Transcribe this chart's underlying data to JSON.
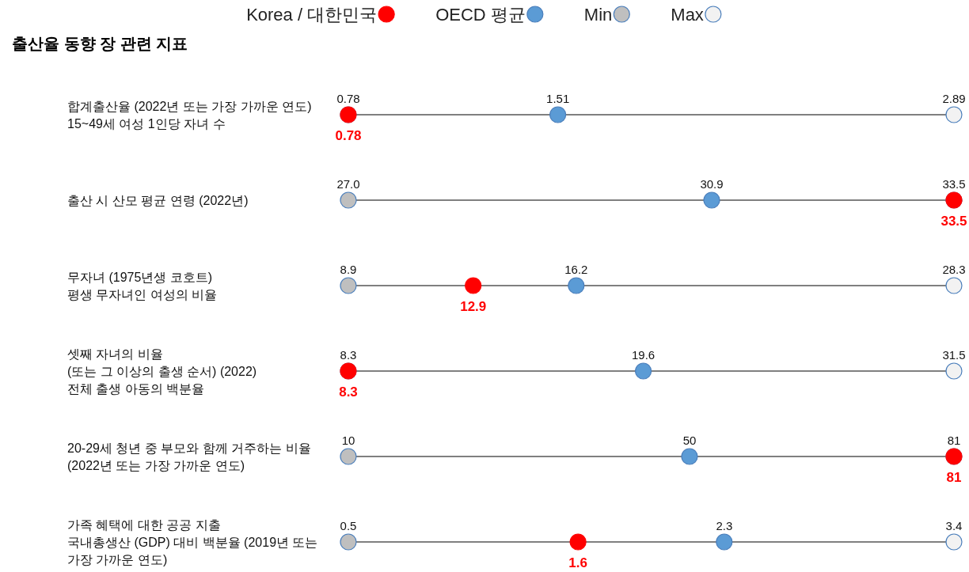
{
  "chart_data": {
    "type": "other",
    "title": "출산율 동향 장 관련 지표",
    "categories": [
      "합계출산율 (2022년 또는 가장 가까운 연도)\n15~49세 여성 1인당 자녀 수",
      "출산 시 산모 평균 연령 (2022년)",
      "무자녀 (1975년생 코호트)\n평생 무자녀인 여성의 비율",
      "셋째 자녀의 비율\n(또는 그 이상의 출생 순서) (2022)\n전체 출생 아동의 백분율",
      "20-29세 청년 중 부모와 함께 거주하는 비율\n(2022년 또는 가장 가까운 연도)",
      "가족 혜택에 대한 공공 지출\n국내총생산 (GDP) 대비 백분율 (2019년 또는\n가장 가까운 연도)"
    ],
    "series": [
      {
        "name": "Korea / 대한민국",
        "color": "#ff0000",
        "values": [
          0.78,
          33.5,
          12.9,
          8.3,
          81,
          1.6
        ],
        "value_labels": [
          "0.78",
          "33.5",
          "12.9",
          "8.3",
          "81",
          "1.6"
        ]
      },
      {
        "name": "OECD 평균",
        "color": "#5b9bd5",
        "values": [
          1.51,
          30.9,
          16.2,
          19.6,
          50,
          2.3
        ],
        "value_labels": [
          "1.51",
          "30.9",
          "16.2",
          "19.6",
          "50",
          "2.3"
        ]
      },
      {
        "name": "Min",
        "color": "#bfbfbf",
        "values": [
          0.78,
          27.0,
          8.9,
          8.3,
          10,
          0.5
        ],
        "value_labels": [
          "0.78",
          "27.0",
          "8.9",
          "8.3",
          "10",
          "0.5"
        ]
      },
      {
        "name": "Max",
        "color": "#f2f2f2",
        "values": [
          2.89,
          33.5,
          28.3,
          31.5,
          81,
          3.4
        ],
        "value_labels": [
          "2.89",
          "33.5",
          "28.3",
          "31.5",
          "81",
          "3.4"
        ]
      }
    ],
    "legend": "top"
  }
}
